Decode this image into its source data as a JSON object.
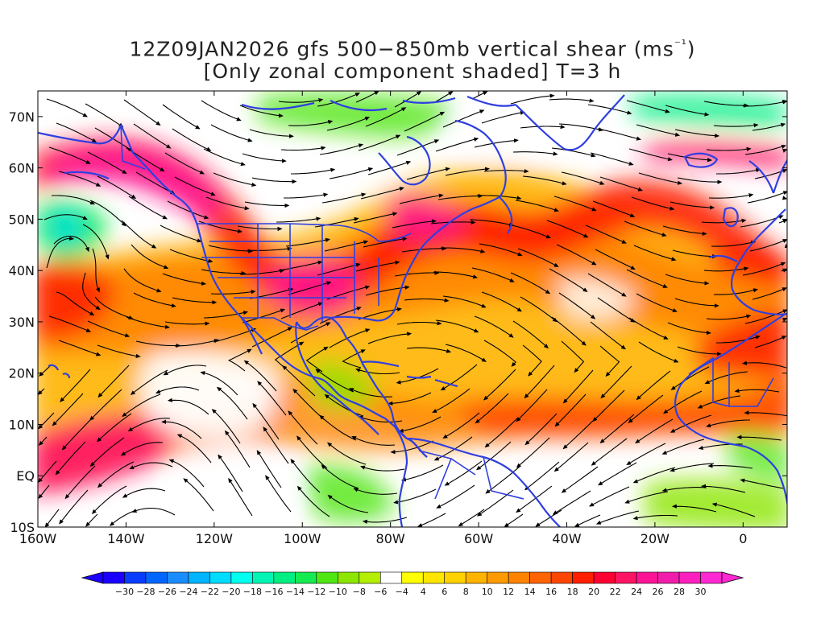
{
  "title": {
    "line1_main": "12Z09JAN2026 gfs 500−850mb vertical shear (ms",
    "line1_exp": "⁻¹",
    "line1_end": ")",
    "line2": "[Only zonal component shaded] T=3 h"
  },
  "map": {
    "lon_range": [
      -160,
      10
    ],
    "lat_range": [
      -10,
      75
    ],
    "lat_ticks": [
      {
        "value": 70,
        "label": "70N"
      },
      {
        "value": 60,
        "label": "60N"
      },
      {
        "value": 50,
        "label": "50N"
      },
      {
        "value": 40,
        "label": "40N"
      },
      {
        "value": 30,
        "label": "30N"
      },
      {
        "value": 20,
        "label": "20N"
      },
      {
        "value": 10,
        "label": "10N"
      },
      {
        "value": 0,
        "label": "EQ"
      },
      {
        "value": -10,
        "label": "10S"
      }
    ],
    "lon_ticks": [
      {
        "value": -160,
        "label": "160W"
      },
      {
        "value": -140,
        "label": "140W"
      },
      {
        "value": -120,
        "label": "120W"
      },
      {
        "value": -100,
        "label": "100W"
      },
      {
        "value": -80,
        "label": "80W"
      },
      {
        "value": -60,
        "label": "60W"
      },
      {
        "value": -40,
        "label": "40W"
      },
      {
        "value": -20,
        "label": "20W"
      },
      {
        "value": 0,
        "label": "0"
      }
    ],
    "coastline_color": "#2f3fe0",
    "streamline_color": "#000000"
  },
  "colorbar": {
    "labels": [
      "−30",
      "−28",
      "−26",
      "−24",
      "−22",
      "−20",
      "−18",
      "−16",
      "−14",
      "−12",
      "−10",
      "−8",
      "−6",
      "−4",
      "4",
      "6",
      "8",
      "10",
      "12",
      "14",
      "16",
      "18",
      "20",
      "22",
      "24",
      "26",
      "28",
      "30"
    ],
    "colors": [
      "#1a00ff",
      "#0a3cff",
      "#0066ff",
      "#1a8cff",
      "#00b4ff",
      "#00dcff",
      "#00ffee",
      "#00f5b4",
      "#00ef82",
      "#14eb50",
      "#50e614",
      "#8ce600",
      "#b4ee00",
      "#ffffff",
      "#ffff00",
      "#ffe600",
      "#ffd200",
      "#ffb400",
      "#ff9b00",
      "#ff8200",
      "#ff6400",
      "#ff4600",
      "#ff1e00",
      "#ff0032",
      "#ff1464",
      "#ff1496",
      "#f01eaa",
      "#ff1ebe",
      "#ff28d2"
    ]
  }
}
